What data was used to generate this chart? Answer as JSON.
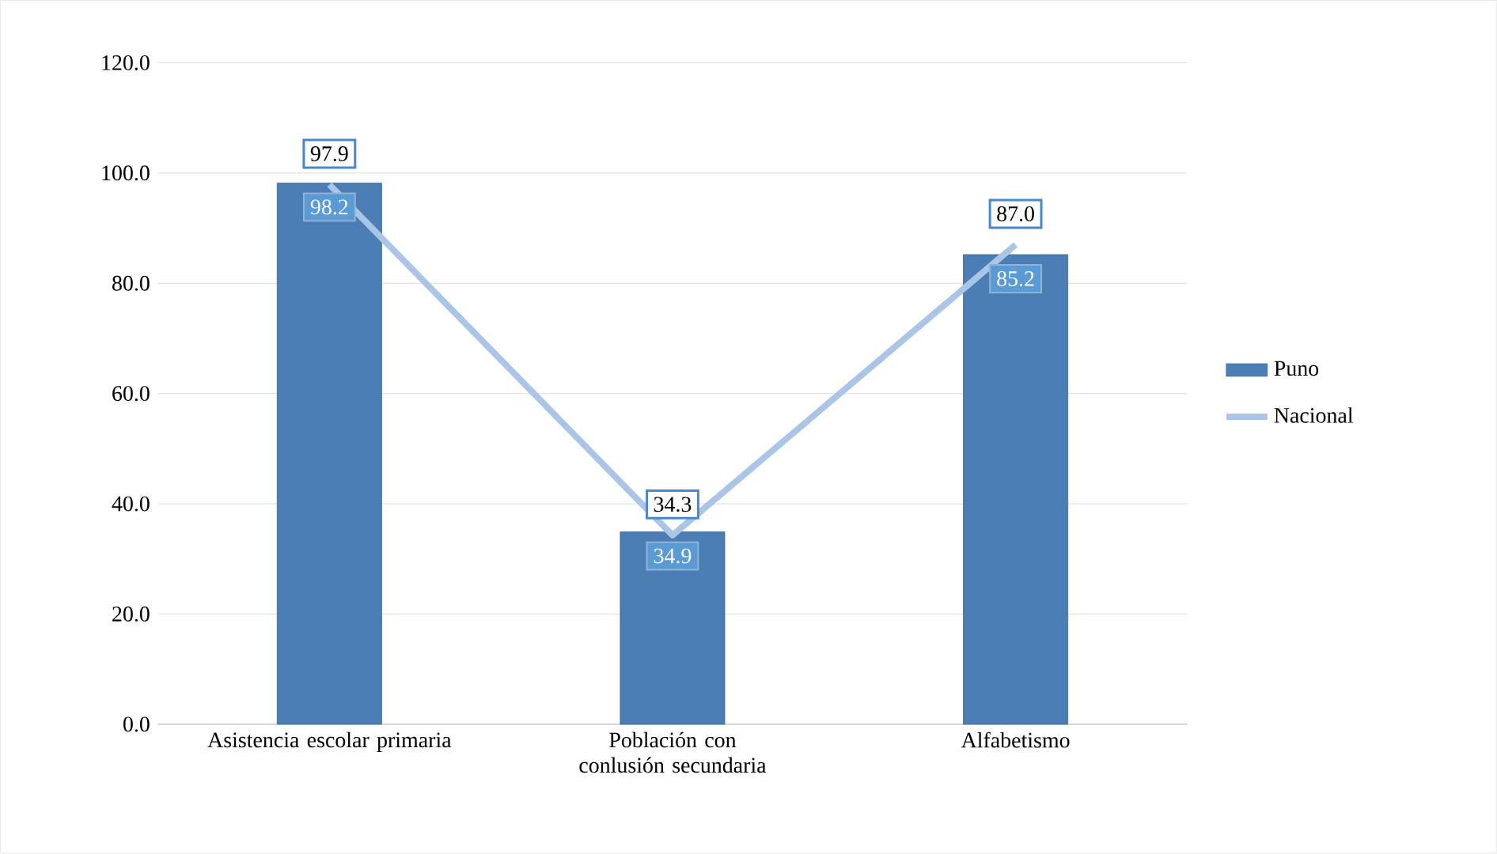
{
  "chart_data": {
    "type": "bar",
    "categories": [
      "Asistencia escolar primaria",
      "Población con conlusión secundaria",
      "Alfabetismo"
    ],
    "series": [
      {
        "name": "Puno",
        "color": "#4a7eb4",
        "values": [
          98.2,
          34.9,
          85.2
        ],
        "value_labels": [
          "98.2",
          "34.9",
          "85.2"
        ]
      },
      {
        "name": "Nacional",
        "type": "line",
        "color": "#aac5e6",
        "values": [
          97.9,
          34.3,
          87.0
        ],
        "value_labels": [
          "97.9",
          "34.3",
          "87.0"
        ]
      }
    ],
    "ylim": [
      0,
      120
    ],
    "yticks": [
      {
        "value": 0,
        "label": "0.0"
      },
      {
        "value": 20,
        "label": "20.0"
      },
      {
        "value": 40,
        "label": "40.0"
      },
      {
        "value": 60,
        "label": "60.0"
      },
      {
        "value": 80,
        "label": "80.0"
      },
      {
        "value": 100,
        "label": "100.0"
      },
      {
        "value": 120,
        "label": "120.0"
      }
    ],
    "grid": "y",
    "legend": "right",
    "marker": "none"
  }
}
